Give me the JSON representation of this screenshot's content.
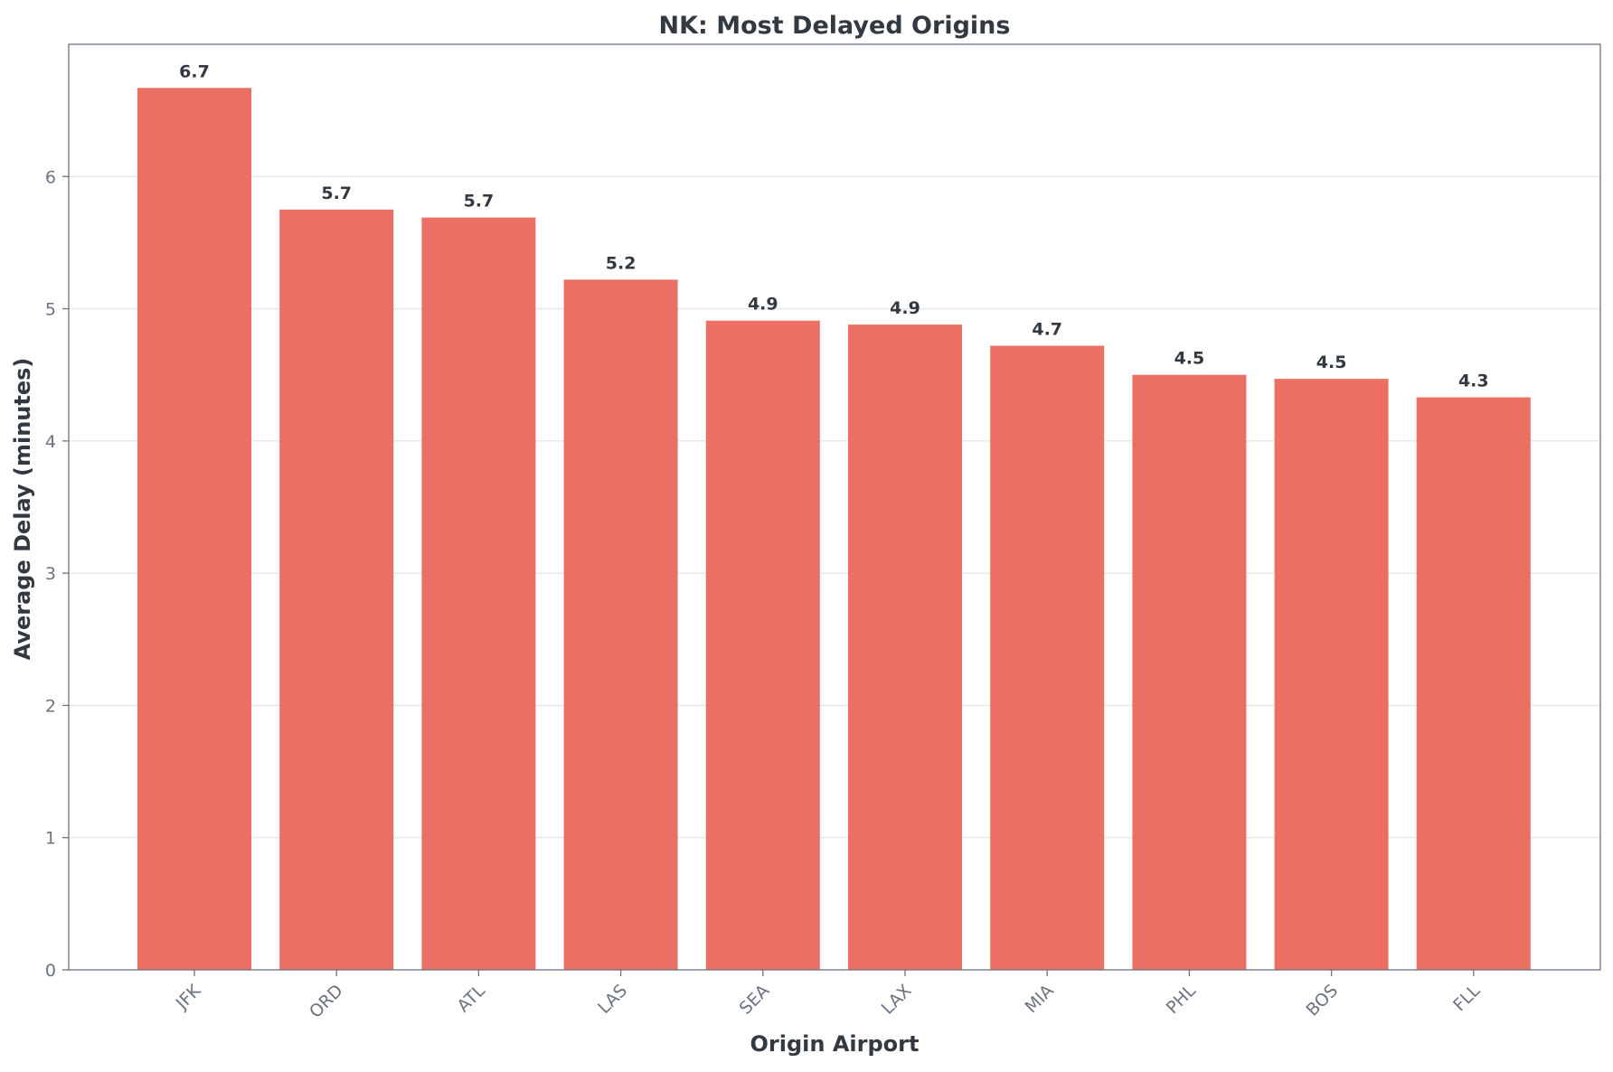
{
  "chart_data": {
    "type": "bar",
    "title": "NK: Most Delayed Origins",
    "xlabel": "Origin Airport",
    "ylabel": "Average Delay (minutes)",
    "categories": [
      "JFK",
      "ORD",
      "ATL",
      "LAS",
      "SEA",
      "LAX",
      "MIA",
      "PHL",
      "BOS",
      "FLL"
    ],
    "values": [
      6.67,
      5.75,
      5.69,
      5.22,
      4.91,
      4.88,
      4.72,
      4.5,
      4.47,
      4.33
    ],
    "value_labels": [
      "6.7",
      "5.7",
      "5.7",
      "5.2",
      "4.9",
      "4.9",
      "4.7",
      "4.5",
      "4.5",
      "4.3"
    ],
    "ylim": [
      0,
      7
    ],
    "yticks": [
      0,
      1,
      2,
      3,
      4,
      5,
      6
    ],
    "ytick_labels": [
      "0",
      "1",
      "2",
      "3",
      "4",
      "5",
      "6"
    ],
    "grid": "horizontal",
    "legend": "none",
    "bar_color": "#eb6f63"
  }
}
